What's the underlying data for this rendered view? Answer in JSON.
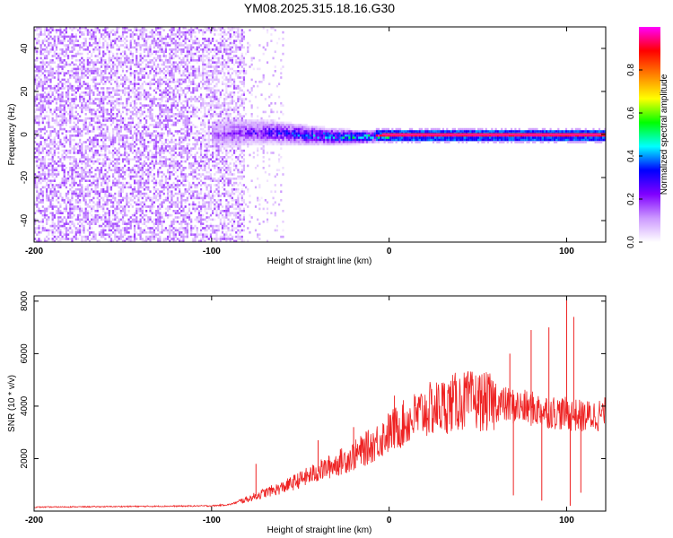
{
  "title": "YM08.2025.315.18.16.G30",
  "chart_data": [
    {
      "type": "heatmap",
      "xlabel": "Height of straight line (km)",
      "ylabel": "Frequency (Hz)",
      "xlim": [
        -200,
        122
      ],
      "ylim": [
        -50,
        50
      ],
      "xticks": [
        -200,
        -100,
        0,
        100
      ],
      "xtick_labels": [
        "-200",
        "-100",
        "0",
        "100"
      ],
      "yticks": [
        -40,
        -20,
        0,
        20,
        40
      ],
      "ytick_labels": [
        "-40",
        "-20",
        "0",
        "20",
        "40"
      ],
      "colorbar": {
        "label": "Normalized spectral amplitude",
        "range": [
          0,
          1
        ],
        "ticks": [
          0,
          0.2,
          0.4,
          0.6,
          0.8
        ],
        "tick_labels": [
          "0.0",
          "0.2",
          "0.4",
          "0.6",
          "0.8"
        ],
        "colormap": [
          "#ffffff",
          "#cc99ff",
          "#8000ff",
          "#0000ff",
          "#00ffff",
          "#00ff00",
          "#ffff00",
          "#ff8000",
          "#ff0000",
          "#ff00ff"
        ]
      },
      "regions": [
        {
          "name": "broadband noise",
          "x_range": [
            -200,
            -82
          ],
          "freq_range": [
            -50,
            50
          ],
          "amplitude": 0.15
        },
        {
          "name": "sparse noise",
          "x_range": [
            -82,
            -60
          ],
          "freq_range": [
            -50,
            50
          ],
          "amplitude": 0.05
        },
        {
          "name": "emerging carrier",
          "x_range": [
            -100,
            0
          ],
          "center_freq_hz": [
            -3,
            3
          ],
          "peak_amplitude": 0.5
        },
        {
          "name": "carrier line",
          "x_range": [
            0,
            122
          ],
          "center_freq_hz": 0,
          "amplitude": 1.0
        }
      ]
    },
    {
      "type": "line",
      "xlabel": "Height of straight line (km)",
      "ylabel": "SNR (10 * v/v)",
      "xlim": [
        -200,
        122
      ],
      "ylim": [
        0,
        8200
      ],
      "xticks": [
        -200,
        -100,
        0,
        100
      ],
      "xtick_labels": [
        "-200",
        "-100",
        "0",
        "100"
      ],
      "yticks": [
        2000,
        4000,
        6000,
        8000
      ],
      "ytick_labels": [
        "2000",
        "4000",
        "6000",
        "8000"
      ],
      "series": [
        {
          "name": "SNR",
          "color": "#ee2222",
          "envelope_x": [
            -200,
            -100,
            -90,
            -80,
            -70,
            -60,
            -50,
            -40,
            -30,
            -20,
            -10,
            0,
            10,
            20,
            30,
            40,
            50,
            60,
            70,
            80,
            90,
            100,
            110,
            122
          ],
          "envelope_y": [
            150,
            200,
            250,
            450,
            700,
            900,
            1200,
            1500,
            1800,
            2100,
            2500,
            3000,
            3400,
            3800,
            4000,
            4200,
            4200,
            4100,
            4000,
            3900,
            3800,
            3700,
            3600,
            3700
          ],
          "spikes": [
            {
              "x": -75,
              "y": 1800
            },
            {
              "x": -40,
              "y": 2700
            },
            {
              "x": -20,
              "y": 3200
            },
            {
              "x": 3,
              "y": 4400
            },
            {
              "x": 50,
              "y": 4600
            },
            {
              "x": 68,
              "y": 6000
            },
            {
              "x": 70,
              "y": 600
            },
            {
              "x": 80,
              "y": 6900
            },
            {
              "x": 86,
              "y": 400
            },
            {
              "x": 90,
              "y": 7000
            },
            {
              "x": 100,
              "y": 8300
            },
            {
              "x": 102,
              "y": 200
            },
            {
              "x": 104,
              "y": 7400
            },
            {
              "x": 108,
              "y": 700
            }
          ]
        }
      ]
    }
  ]
}
